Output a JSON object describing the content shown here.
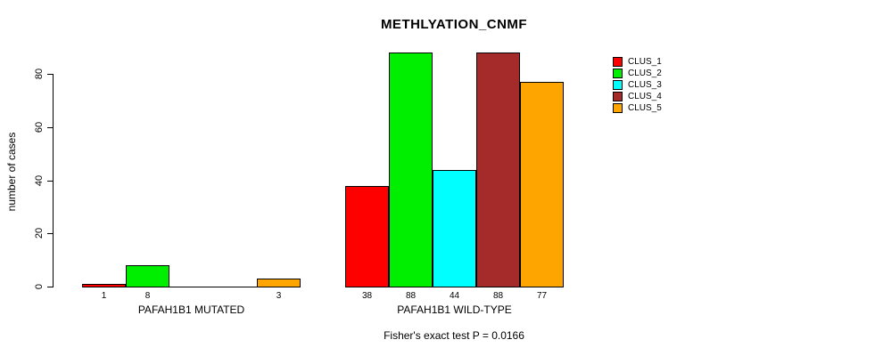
{
  "title": "METHLYATION_CNMF",
  "footer": "Fisher's exact test P = 0.0166",
  "chart_data": {
    "type": "bar",
    "title": "METHLYATION_CNMF",
    "ylabel": "number of cases",
    "ylim": [
      0,
      88
    ],
    "yticks": [
      0,
      20,
      40,
      60,
      80
    ],
    "grid": false,
    "legend_position": "right",
    "annotation": "Fisher's exact test P = 0.0166",
    "series": [
      {
        "name": "CLUS_1",
        "color": "#FF0000"
      },
      {
        "name": "CLUS_2",
        "color": "#00EE00"
      },
      {
        "name": "CLUS_3",
        "color": "#00FFFF"
      },
      {
        "name": "CLUS_4",
        "color": "#A52A2A"
      },
      {
        "name": "CLUS_5",
        "color": "#FFA500"
      }
    ],
    "groups": [
      {
        "label": "PAFAH1B1 MUTATED",
        "values": [
          1,
          8,
          0,
          0,
          3
        ],
        "bar_labels": [
          "1",
          "8",
          "",
          "",
          "3"
        ]
      },
      {
        "label": "PAFAH1B1 WILD-TYPE",
        "values": [
          38,
          88,
          44,
          88,
          77
        ],
        "bar_labels": [
          "38",
          "88",
          "44",
          "88",
          "77"
        ]
      }
    ]
  }
}
